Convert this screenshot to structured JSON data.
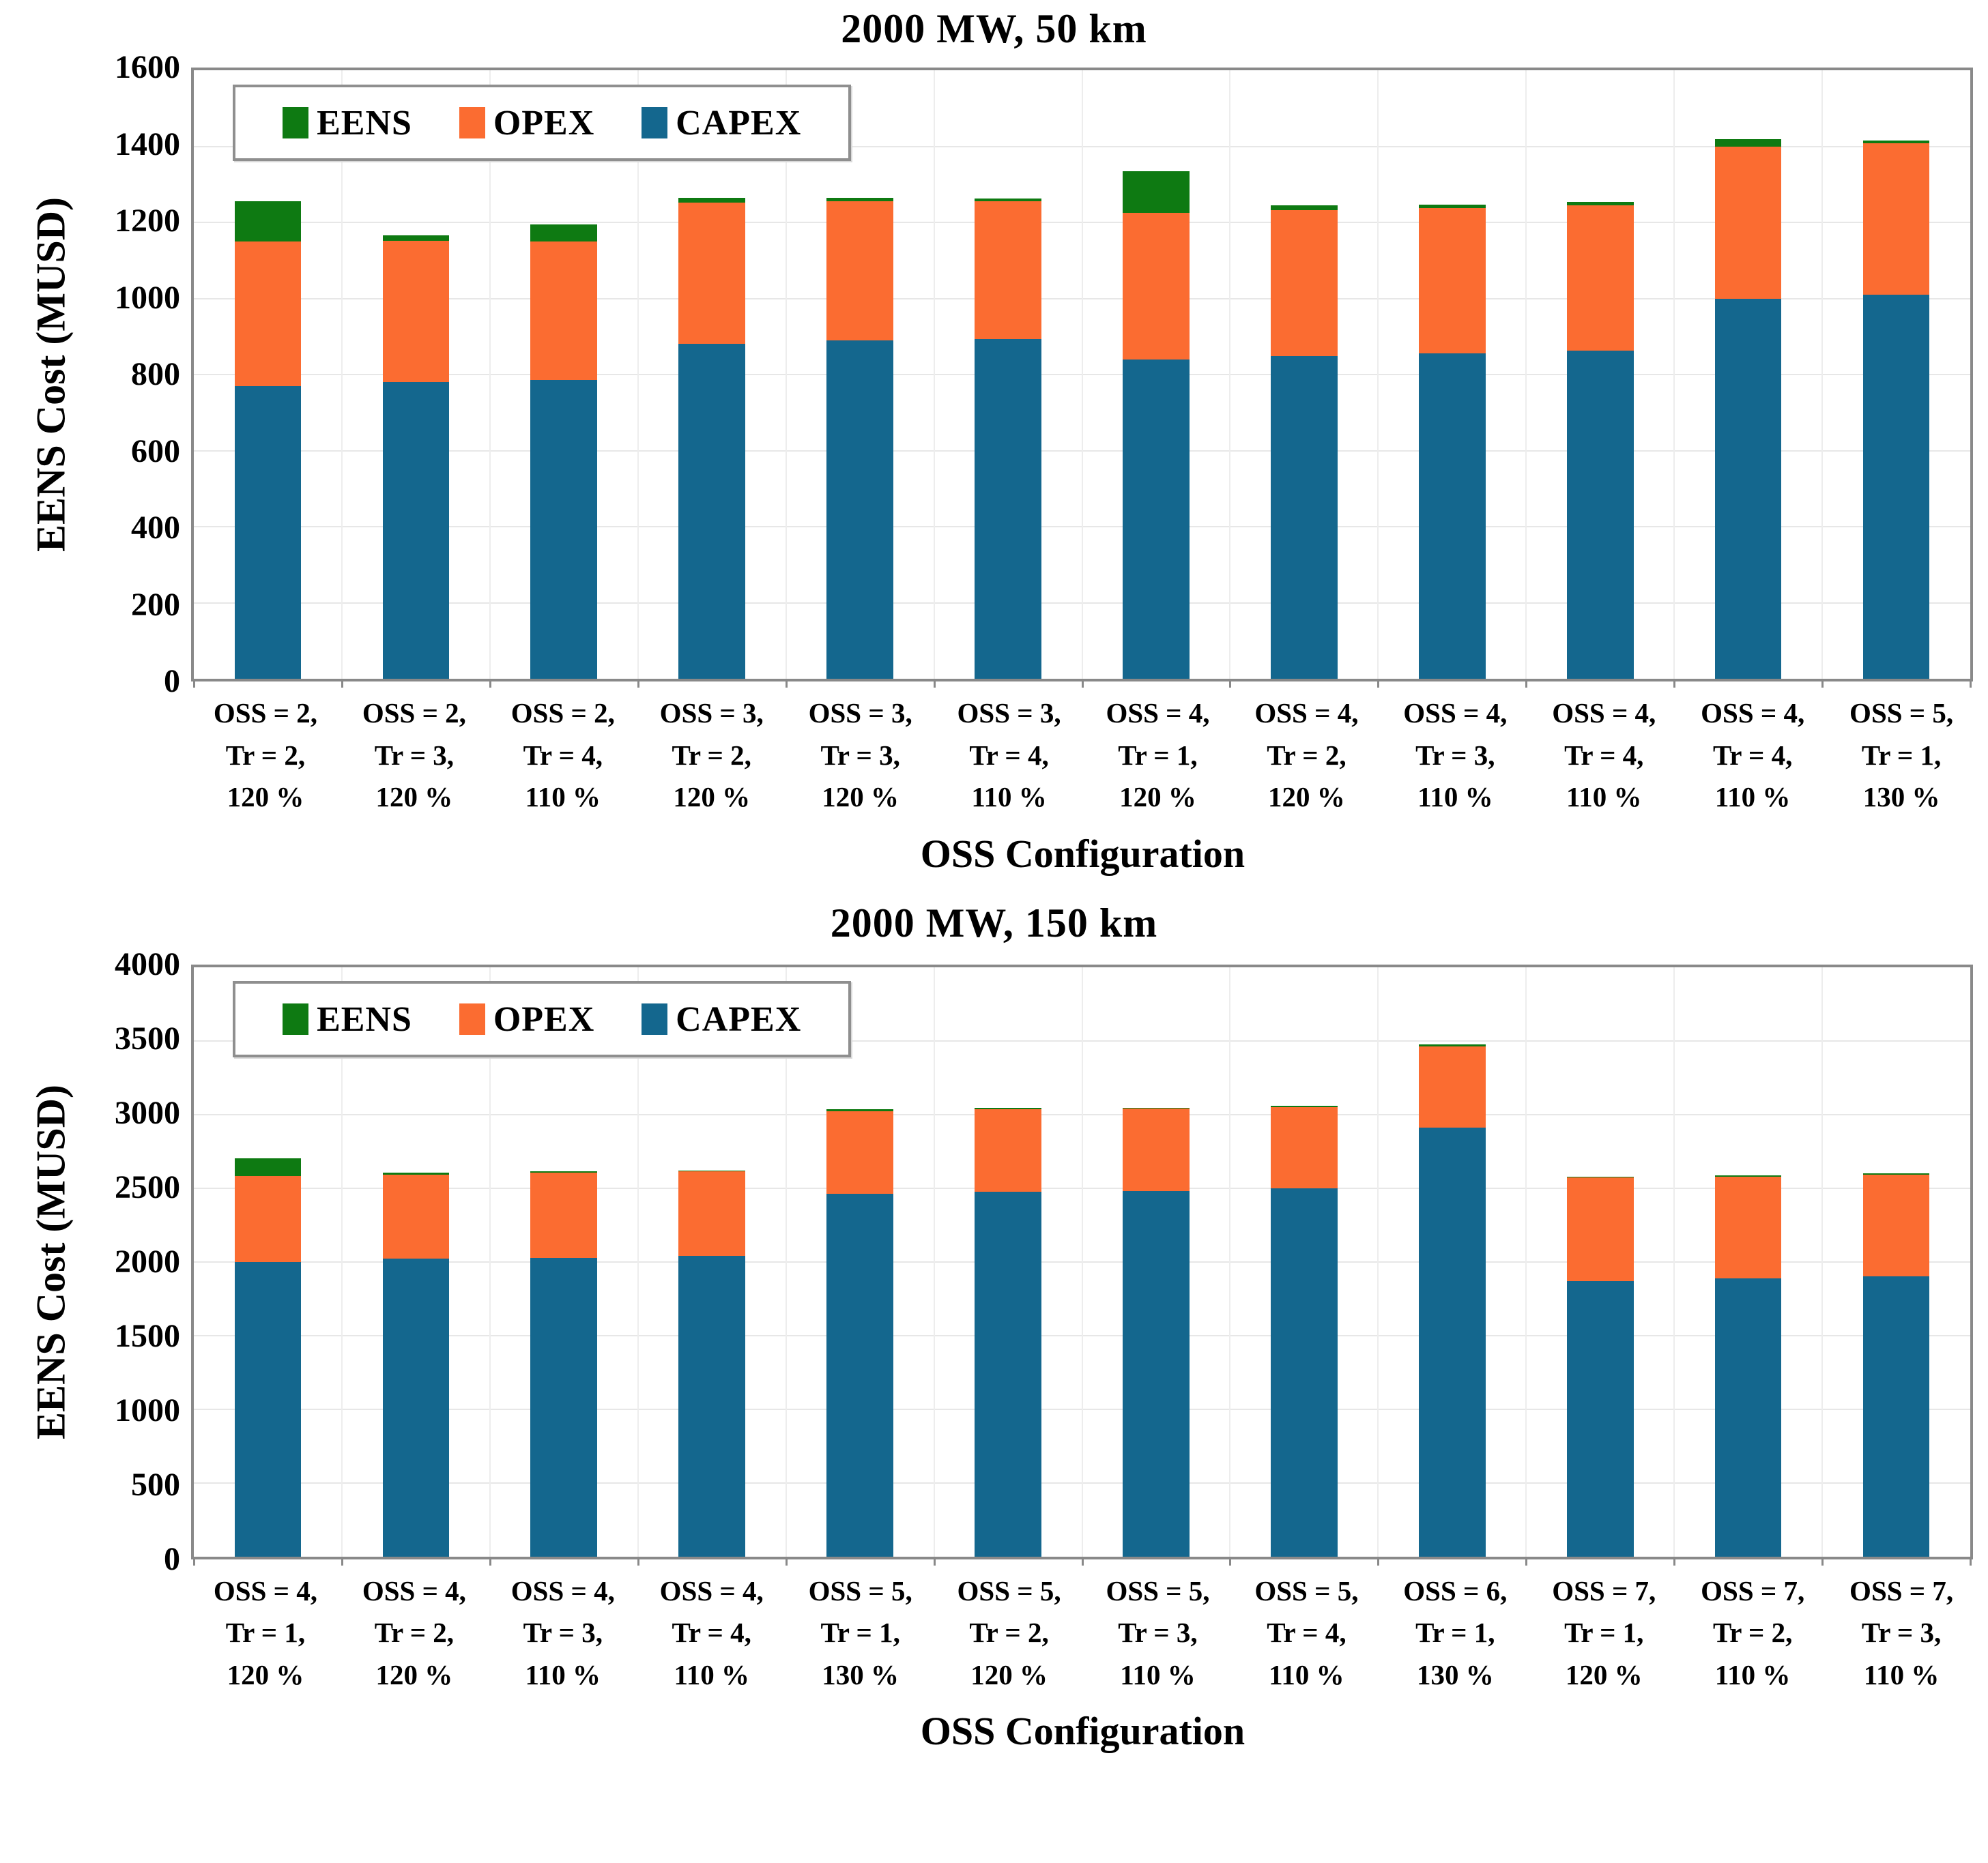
{
  "chart_data": [
    {
      "type": "bar",
      "stacked": true,
      "title": "2000 MW, 50 km",
      "ylabel": "EENS Cost (MUSD)",
      "xlabel": "OSS Configuration",
      "ylim": [
        0,
        1600
      ],
      "yticks": [
        0,
        200,
        400,
        600,
        800,
        1000,
        1200,
        1400,
        1600
      ],
      "grid": "on",
      "legend_position": "top-left-inside",
      "legend": [
        {
          "label": "EENS",
          "color": "#0e7a12"
        },
        {
          "label": "OPEX",
          "color": "#fb6c31"
        },
        {
          "label": "CAPEX",
          "color": "#14678e"
        }
      ],
      "categories": [
        [
          "OSS = 2,",
          "Tr = 2,",
          "120 %"
        ],
        [
          "OSS = 2,",
          "Tr = 3,",
          "120 %"
        ],
        [
          "OSS = 2,",
          "Tr = 4,",
          "110 %"
        ],
        [
          "OSS = 3,",
          "Tr = 2,",
          "120 %"
        ],
        [
          "OSS = 3,",
          "Tr = 3,",
          "120 %"
        ],
        [
          "OSS = 3,",
          "Tr = 4,",
          "110 %"
        ],
        [
          "OSS = 4,",
          "Tr = 1,",
          "120 %"
        ],
        [
          "OSS = 4,",
          "Tr = 2,",
          "120 %"
        ],
        [
          "OSS = 4,",
          "Tr = 3,",
          "110 %"
        ],
        [
          "OSS = 4,",
          "Tr = 4,",
          "110 %"
        ],
        [
          "OSS = 4,",
          "Tr = 4,",
          "110 %"
        ],
        [
          "OSS = 5,",
          "Tr = 1,",
          "130 %"
        ]
      ],
      "series": [
        {
          "name": "CAPEX",
          "color": "#14678e",
          "values": [
            770,
            780,
            785,
            880,
            890,
            893,
            840,
            848,
            855,
            862,
            1000,
            1010
          ]
        },
        {
          "name": "OPEX",
          "color": "#fb6c31",
          "values": [
            380,
            372,
            365,
            372,
            366,
            362,
            385,
            384,
            383,
            382,
            400,
            398
          ]
        },
        {
          "name": "EENS",
          "color": "#0e7a12",
          "values": [
            105,
            14,
            45,
            12,
            8,
            8,
            110,
            12,
            9,
            10,
            18,
            7
          ]
        }
      ]
    },
    {
      "type": "bar",
      "stacked": true,
      "title": "2000 MW, 150 km",
      "ylabel": "EENS Cost (MUSD)",
      "xlabel": "OSS Configuration",
      "ylim": [
        0,
        4000
      ],
      "yticks": [
        0,
        500,
        1000,
        1500,
        2000,
        2500,
        3000,
        3500,
        4000
      ],
      "grid": "on",
      "legend_position": "top-left-inside",
      "legend": [
        {
          "label": "EENS",
          "color": "#0e7a12"
        },
        {
          "label": "OPEX",
          "color": "#fb6c31"
        },
        {
          "label": "CAPEX",
          "color": "#14678e"
        }
      ],
      "categories": [
        [
          "OSS = 4,",
          "Tr = 1,",
          "120 %"
        ],
        [
          "OSS = 4,",
          "Tr = 2,",
          "120 %"
        ],
        [
          "OSS = 4,",
          "Tr = 3,",
          "110 %"
        ],
        [
          "OSS = 4,",
          "Tr = 4,",
          "110 %"
        ],
        [
          "OSS = 5,",
          "Tr = 1,",
          "130 %"
        ],
        [
          "OSS = 5,",
          "Tr = 2,",
          "120 %"
        ],
        [
          "OSS = 5,",
          "Tr = 3,",
          "110 %"
        ],
        [
          "OSS = 5,",
          "Tr = 4,",
          "110 %"
        ],
        [
          "OSS = 6,",
          "Tr = 1,",
          "130 %"
        ],
        [
          "OSS = 7,",
          "Tr = 1,",
          "120 %"
        ],
        [
          "OSS = 7,",
          "Tr = 2,",
          "110 %"
        ],
        [
          "OSS = 7,",
          "Tr = 3,",
          "110 %"
        ]
      ],
      "series": [
        {
          "name": "CAPEX",
          "color": "#14678e",
          "values": [
            2000,
            2020,
            2025,
            2040,
            2460,
            2475,
            2480,
            2500,
            2910,
            1870,
            1885,
            1900
          ]
        },
        {
          "name": "OPEX",
          "color": "#fb6c31",
          "values": [
            580,
            572,
            578,
            572,
            562,
            560,
            558,
            550,
            550,
            700,
            692,
            692
          ]
        },
        {
          "name": "EENS",
          "color": "#0e7a12",
          "values": [
            120,
            14,
            10,
            8,
            14,
            8,
            8,
            8,
            16,
            8,
            8,
            8
          ]
        }
      ]
    }
  ]
}
